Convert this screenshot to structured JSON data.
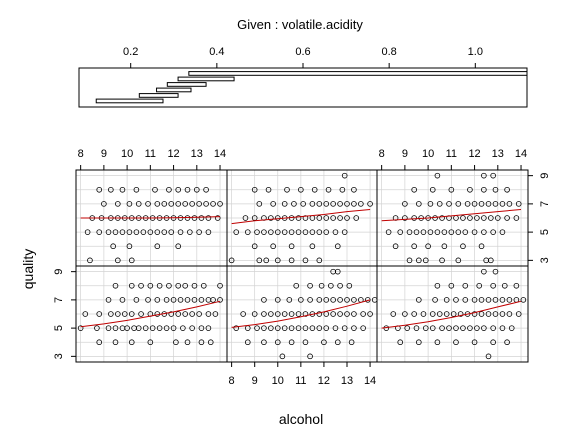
{
  "chart_data": {
    "type": "scatter",
    "plot_kind": "coplot",
    "given_label": "Given : volatile.acidity",
    "xlabel": "alcohol",
    "ylabel": "quality",
    "given_axis": {
      "range": [
        0.08,
        1.12
      ],
      "ticks": [
        0.2,
        0.4,
        0.6,
        0.8,
        1.0
      ],
      "tick_labels": [
        "0.2",
        "0.4",
        "0.6",
        "0.8",
        "1.0"
      ]
    },
    "given_intervals": [
      [
        0.12,
        0.275
      ],
      [
        0.22,
        0.31
      ],
      [
        0.26,
        0.34
      ],
      [
        0.285,
        0.375
      ],
      [
        0.31,
        0.44
      ],
      [
        0.335,
        1.12
      ]
    ],
    "x_axis": {
      "range": [
        7.8,
        14.3
      ],
      "ticks": [
        8,
        9,
        10,
        11,
        12,
        13,
        14
      ],
      "tick_labels": [
        "8",
        "9",
        "10",
        "11",
        "12",
        "13",
        "14"
      ]
    },
    "y_axis": {
      "range": [
        2.6,
        9.4
      ],
      "ticks": [
        3,
        5,
        7,
        9
      ],
      "tick_labels": [
        "3",
        "5",
        "7",
        "9"
      ]
    },
    "grid": true,
    "colors": {
      "points": "#000000",
      "smoother": "#c00000",
      "grid": "#d3d3d3",
      "frame": "#000000"
    },
    "panels": [
      {
        "interval": 1,
        "points": {
          "3": [],
          "4": [
            8.8,
            9.5,
            10.2,
            11.0,
            12.1,
            12.6,
            13.2,
            13.6
          ],
          "5": [
            8.0,
            8.7,
            9.2,
            9.5,
            9.8,
            10.0,
            10.3,
            10.5,
            10.8,
            11.1,
            11.4,
            11.7,
            12.0,
            12.4,
            12.8,
            13.2,
            13.5
          ],
          "6": [
            8.2,
            8.8,
            9.3,
            9.6,
            9.9,
            10.2,
            10.6,
            11.0,
            11.3,
            11.6,
            11.9,
            12.2,
            12.5,
            12.8,
            13.1,
            13.5,
            13.8
          ],
          "7": [
            9.2,
            9.8,
            10.4,
            10.9,
            11.3,
            11.7,
            12.0,
            12.3,
            12.6,
            12.9,
            13.2,
            13.5,
            13.7,
            14.0
          ],
          "8": [
            9.5,
            10.2,
            10.6,
            11.0,
            11.4,
            11.8,
            12.2,
            12.5,
            12.9,
            13.3,
            14.0
          ],
          "9": []
        },
        "smoother": [
          [
            8.0,
            5.1
          ],
          [
            9.0,
            5.3
          ],
          [
            10.0,
            5.55
          ],
          [
            11.0,
            5.85
          ],
          [
            12.0,
            6.15
          ],
          [
            13.0,
            6.5
          ],
          [
            14.0,
            6.9
          ]
        ]
      },
      {
        "interval": 2,
        "points": {
          "3": [
            10.2,
            11.4
          ],
          "4": [
            8.7,
            9.4,
            10.0,
            10.6,
            11.2,
            12.0,
            12.6,
            13.2
          ],
          "5": [
            8.2,
            8.7,
            9.1,
            9.4,
            9.7,
            10.0,
            10.3,
            10.6,
            10.9,
            11.2,
            11.5,
            11.8,
            12.1,
            12.5,
            12.9,
            13.3,
            13.7
          ],
          "6": [
            8.5,
            9.0,
            9.4,
            9.7,
            10.0,
            10.3,
            10.6,
            10.9,
            11.2,
            11.5,
            11.8,
            12.1,
            12.4,
            12.7,
            13.0,
            13.3,
            13.7,
            14.0
          ],
          "7": [
            9.4,
            10.0,
            10.5,
            11.0,
            11.4,
            11.8,
            12.1,
            12.4,
            12.7,
            13.0,
            13.3,
            13.6,
            13.9,
            14.2
          ],
          "8": [
            10.8,
            11.4,
            11.9,
            12.3,
            12.7,
            13.1
          ],
          "9": [
            12.4,
            12.6
          ]
        },
        "smoother": [
          [
            8.0,
            5.05
          ],
          [
            9.0,
            5.25
          ],
          [
            10.0,
            5.5
          ],
          [
            11.0,
            5.8
          ],
          [
            12.0,
            6.15
          ],
          [
            13.0,
            6.55
          ],
          [
            14.0,
            7.0
          ]
        ]
      },
      {
        "interval": 3,
        "points": {
          "3": [
            12.6
          ],
          "4": [
            8.8,
            9.6,
            10.4,
            11.2,
            12.0,
            12.8,
            13.4
          ],
          "5": [
            8.2,
            8.7,
            9.1,
            9.5,
            9.9,
            10.2,
            10.6,
            10.9,
            11.2,
            11.5,
            11.8,
            12.1,
            12.4,
            12.8,
            13.2,
            13.6
          ],
          "6": [
            8.5,
            9.0,
            9.4,
            9.8,
            10.2,
            10.5,
            10.8,
            11.1,
            11.4,
            11.7,
            12.0,
            12.3,
            12.6,
            12.9,
            13.2,
            13.5,
            13.9
          ],
          "7": [
            9.6,
            10.3,
            10.8,
            11.2,
            11.6,
            12.0,
            12.3,
            12.6,
            12.9,
            13.2,
            13.5,
            13.8,
            14.1
          ],
          "8": [
            10.4,
            11.0,
            11.6,
            12.2,
            12.8,
            13.3,
            13.8
          ],
          "9": [
            12.4,
            12.9
          ]
        },
        "smoother": [
          [
            8.0,
            5.0
          ],
          [
            9.0,
            5.2
          ],
          [
            10.0,
            5.45
          ],
          [
            11.0,
            5.75
          ],
          [
            12.0,
            6.1
          ],
          [
            13.0,
            6.5
          ],
          [
            14.0,
            6.9
          ]
        ]
      },
      {
        "interval": 4,
        "points": {
          "3": [
            8.4,
            9.6,
            10.2
          ],
          "4": [
            9.4,
            10.1,
            11.3,
            12.2
          ],
          "5": [
            8.3,
            8.8,
            9.2,
            9.5,
            9.8,
            10.1,
            10.4,
            10.7,
            11.0,
            11.3,
            11.6,
            11.9,
            12.3,
            12.7,
            13.1,
            13.5
          ],
          "6": [
            8.5,
            8.9,
            9.3,
            9.6,
            9.9,
            10.2,
            10.5,
            10.8,
            11.1,
            11.4,
            11.7,
            12.0,
            12.3,
            12.6,
            12.9,
            13.2,
            13.5,
            13.9
          ],
          "7": [
            9.0,
            9.6,
            10.1,
            10.5,
            10.9,
            11.3,
            11.6,
            11.9,
            12.2,
            12.5,
            12.8,
            13.1,
            13.4,
            13.7,
            14.0
          ],
          "8": [
            8.8,
            9.3,
            9.8,
            10.4,
            11.2,
            11.8,
            12.2,
            12.6,
            13.0,
            13.4
          ],
          "9": []
        },
        "smoother": [
          [
            8.0,
            6.0
          ],
          [
            9.0,
            6.0
          ],
          [
            10.0,
            6.0
          ],
          [
            11.0,
            6.0
          ],
          [
            12.0,
            6.02
          ],
          [
            13.0,
            6.05
          ],
          [
            14.0,
            6.1
          ]
        ]
      },
      {
        "interval": 5,
        "points": {
          "3": [
            8.0,
            9.2,
            9.5,
            10.0,
            10.6,
            11.2,
            11.8
          ],
          "4": [
            9.0,
            9.8,
            10.6,
            11.5,
            12.6
          ],
          "5": [
            8.2,
            8.7,
            9.1,
            9.4,
            9.7,
            10.0,
            10.3,
            10.6,
            10.9,
            11.2,
            11.5,
            11.8,
            12.1,
            12.5,
            12.9
          ],
          "6": [
            8.6,
            9.0,
            9.4,
            9.7,
            10.0,
            10.3,
            10.6,
            10.9,
            11.2,
            11.5,
            11.8,
            12.1,
            12.4,
            12.7,
            13.0,
            13.4
          ],
          "7": [
            9.2,
            9.8,
            10.3,
            10.7,
            11.1,
            11.5,
            11.8,
            12.1,
            12.4,
            12.7,
            13.0,
            13.3,
            13.6,
            14.0
          ],
          "8": [
            9.0,
            9.6,
            10.4,
            11.0,
            11.6,
            12.2,
            12.8,
            13.3
          ],
          "9": [
            12.9
          ]
        },
        "smoother": [
          [
            8.0,
            5.6
          ],
          [
            9.0,
            5.8
          ],
          [
            10.0,
            5.95
          ],
          [
            11.0,
            6.1
          ],
          [
            12.0,
            6.25
          ],
          [
            13.0,
            6.45
          ],
          [
            14.0,
            6.6
          ]
        ]
      },
      {
        "interval": 6,
        "points": {
          "3": [
            9.2,
            9.6,
            9.9,
            10.6,
            11.3,
            12.5,
            12.7
          ],
          "4": [
            8.6,
            9.4,
            10.0,
            10.7,
            11.5,
            12.3
          ],
          "5": [
            8.3,
            8.8,
            9.2,
            9.5,
            9.8,
            10.1,
            10.4,
            10.7,
            11.0,
            11.3,
            11.6,
            12.0,
            12.4,
            12.8,
            13.2
          ],
          "6": [
            8.6,
            9.0,
            9.4,
            9.7,
            10.0,
            10.3,
            10.6,
            10.9,
            11.2,
            11.5,
            11.8,
            12.1,
            12.4,
            12.7,
            13.0,
            13.4,
            13.8
          ],
          "7": [
            9.0,
            9.6,
            10.1,
            10.5,
            10.9,
            11.3,
            11.7,
            12.0,
            12.3,
            12.6,
            12.9,
            13.2,
            13.5,
            13.9
          ],
          "8": [
            9.4,
            10.2,
            11.0,
            11.8,
            12.4,
            12.9,
            13.4
          ],
          "9": [
            10.4,
            12.4,
            12.8
          ]
        },
        "smoother": [
          [
            8.0,
            5.8
          ],
          [
            9.0,
            5.9
          ],
          [
            10.0,
            6.0
          ],
          [
            11.0,
            6.15
          ],
          [
            12.0,
            6.3
          ],
          [
            13.0,
            6.45
          ],
          [
            14.0,
            6.6
          ]
        ]
      }
    ]
  }
}
